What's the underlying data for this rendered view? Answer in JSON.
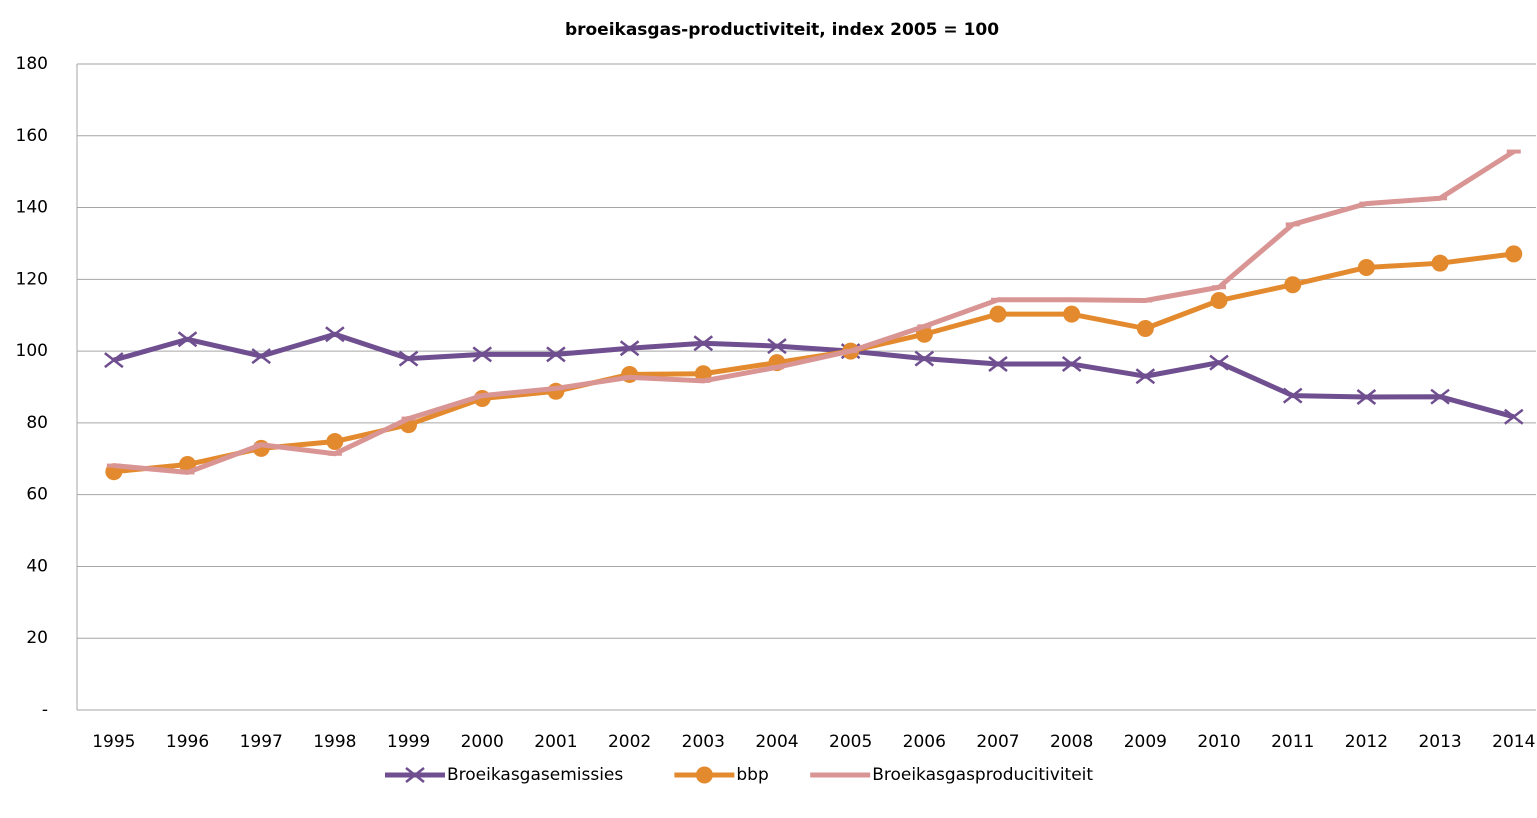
{
  "chart_data": {
    "type": "line",
    "title": "broeikasgas-productiviteit, index 2005 = 100",
    "categories": [
      "1995",
      "1996",
      "1997",
      "1998",
      "1999",
      "2000",
      "2001",
      "2002",
      "2003",
      "2004",
      "2005",
      "2006",
      "2007",
      "2008",
      "2009",
      "2010",
      "2011",
      "2012",
      "2013",
      "2014"
    ],
    "series": [
      {
        "name": "Broeikasgasemissies",
        "color": "#6f4f8f",
        "marker": "x",
        "values": [
          97.5,
          103.3,
          98.6,
          104.7,
          97.9,
          99.1,
          99.1,
          100.8,
          102.2,
          101.4,
          100,
          97.9,
          96.4,
          96.4,
          93.0,
          96.8,
          87.6,
          87.2,
          87.3,
          81.7
        ]
      },
      {
        "name": "bbp",
        "color": "#e48a2e",
        "marker": "circle",
        "values": [
          66.4,
          68.4,
          72.9,
          74.8,
          79.5,
          86.8,
          88.8,
          93.5,
          93.7,
          96.8,
          100,
          104.7,
          110.3,
          110.3,
          106.3,
          114.1,
          118.5,
          123.3,
          124.5,
          127.1
        ]
      },
      {
        "name": "Broeikasgasproducitiviteit",
        "color": "#d99594",
        "marker": "dash",
        "values": [
          68.1,
          66.2,
          73.9,
          71.4,
          81.2,
          87.6,
          89.6,
          92.7,
          91.7,
          95.5,
          100,
          106.9,
          114.3,
          114.3,
          114.1,
          117.8,
          135.3,
          141.1,
          142.6,
          155.6
        ]
      }
    ],
    "ylim": [
      0,
      180
    ],
    "yticks": [
      {
        "value": 0,
        "label": "-"
      },
      20,
      40,
      60,
      80,
      100,
      120,
      140,
      160,
      180
    ],
    "grid": true,
    "legend": "bottom"
  }
}
